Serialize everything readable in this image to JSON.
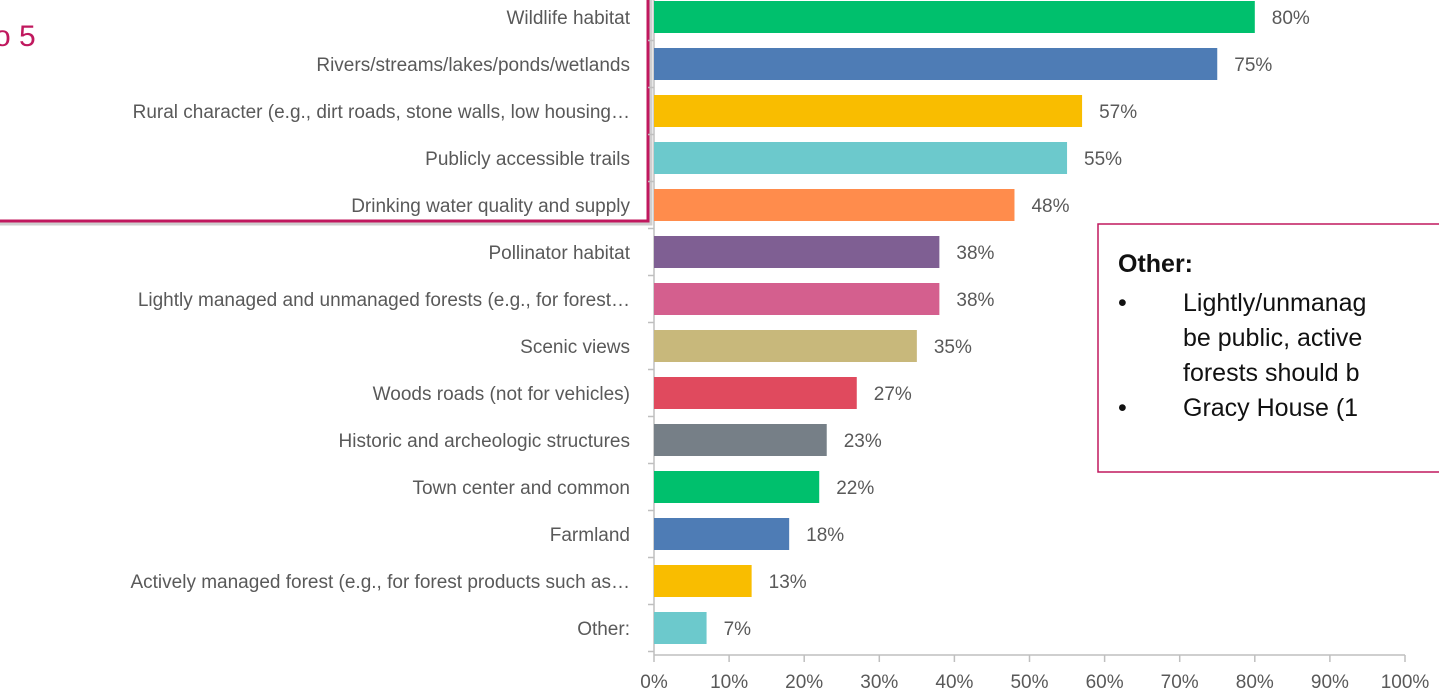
{
  "top_box": {
    "label": "o 5",
    "border_color": "#c0185e"
  },
  "note": {
    "title": "Other:",
    "bullet_glyph": "•",
    "items": [
      "Lightly/unmanag",
      "be public, active",
      "forests should b",
      "Gracy House (1"
    ],
    "border_color": "#c0185e"
  },
  "chart_data": {
    "type": "bar",
    "orientation": "horizontal",
    "title": "",
    "xlabel": "",
    "ylabel": "",
    "xlim": [
      0,
      100
    ],
    "ticks": [
      "0%",
      "10%",
      "20%",
      "30%",
      "40%",
      "50%",
      "60%",
      "70%",
      "80%",
      "90%",
      "100%"
    ],
    "grid": false,
    "categories": [
      "Wildlife habitat",
      "Rivers/streams/lakes/ponds/wetlands",
      "Rural character (e.g., dirt roads, stone walls, low housing…",
      "Publicly accessible trails",
      "Drinking water quality and supply",
      "Pollinator habitat",
      "Lightly managed and unmanaged forests (e.g., for forest…",
      "Scenic views",
      "Woods roads (not for vehicles)",
      "Historic and archeologic structures",
      "Town center and common",
      "Farmland",
      "Actively managed forest (e.g., for forest products such as…",
      "Other:"
    ],
    "values": [
      80,
      75,
      57,
      55,
      48,
      38,
      38,
      35,
      27,
      23,
      22,
      18,
      13,
      7
    ],
    "value_labels": [
      "80%",
      "75%",
      "57%",
      "55%",
      "48%",
      "38%",
      "38%",
      "35%",
      "27%",
      "23%",
      "22%",
      "18%",
      "13%",
      "7%"
    ],
    "colors": [
      "#00c06d",
      "#4e7cb5",
      "#f9bd00",
      "#6cc9cc",
      "#ff8c4c",
      "#7f5f93",
      "#d45f8e",
      "#c8b87b",
      "#e04a5e",
      "#767f87",
      "#00c06d",
      "#4e7cb5",
      "#f9bd00",
      "#6cc9cc"
    ]
  }
}
